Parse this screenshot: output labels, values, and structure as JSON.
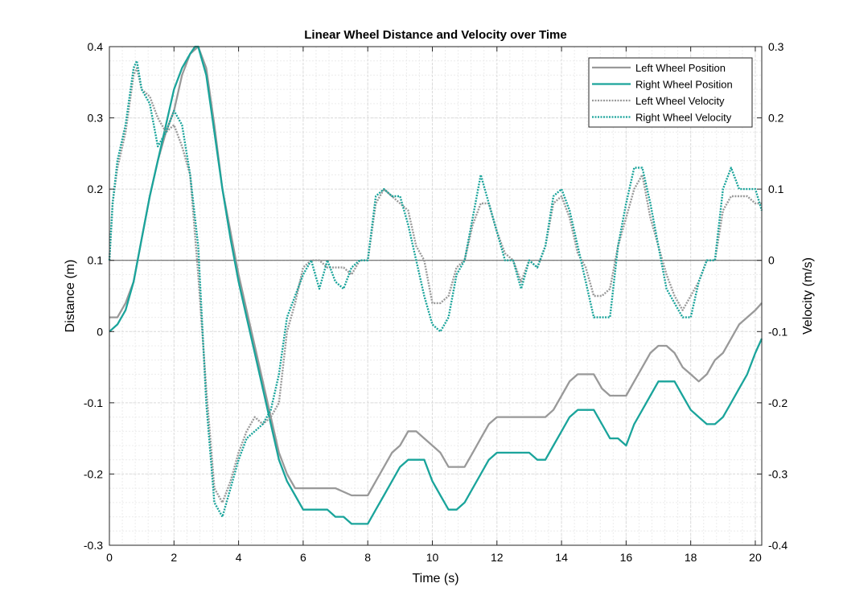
{
  "chart_data": {
    "type": "line",
    "title": "Linear Wheel Distance and Velocity over Time",
    "xlabel": "Time (s)",
    "ylabel_left": "Distance (m)",
    "ylabel_right": "Velocity (m/s)",
    "xlim": [
      0,
      20.2
    ],
    "ylim_left": [
      -0.3,
      0.4
    ],
    "ylim_right": [
      -0.4,
      0.3
    ],
    "x_ticks": [
      0,
      2,
      4,
      6,
      8,
      10,
      12,
      14,
      16,
      18,
      20
    ],
    "y_left_ticks": [
      -0.3,
      -0.2,
      -0.1,
      0,
      0.1,
      0.2,
      0.3,
      0.4
    ],
    "y_right_ticks": [
      -0.4,
      -0.3,
      -0.2,
      -0.1,
      0,
      0.1,
      0.2,
      0.3
    ],
    "x_tick_labels": [
      "0",
      "2",
      "4",
      "6",
      "8",
      "10",
      "12",
      "14",
      "16",
      "18",
      "20"
    ],
    "y_left_tick_labels": [
      "-0.3",
      "-0.2",
      "-0.1",
      "0",
      "0.1",
      "0.2",
      "0.3",
      "0.4"
    ],
    "y_right_tick_labels": [
      "-0.4",
      "-0.3",
      "-0.2",
      "-0.1",
      "0",
      "0.1",
      "0.2",
      "0.3"
    ],
    "grid": true,
    "minor_grid": true,
    "zero_line_right_axis": 0,
    "legend_position": "top-right",
    "series": [
      {
        "name": "Left Wheel Position",
        "axis": "left",
        "style": "solid",
        "color": "#999999",
        "x": [
          0,
          0.25,
          0.5,
          0.75,
          1.0,
          1.25,
          1.5,
          1.75,
          2.0,
          2.25,
          2.5,
          2.75,
          3.0,
          3.25,
          3.5,
          3.75,
          4.0,
          4.25,
          4.5,
          4.75,
          5.0,
          5.25,
          5.5,
          5.75,
          6.0,
          6.5,
          7.0,
          7.5,
          8.0,
          8.25,
          8.5,
          8.75,
          9.0,
          9.25,
          9.5,
          9.75,
          10.0,
          10.25,
          10.5,
          10.75,
          11.0,
          11.25,
          11.5,
          11.75,
          12.0,
          12.5,
          13.0,
          13.5,
          13.75,
          14.0,
          14.25,
          14.5,
          14.75,
          15.0,
          15.25,
          15.5,
          15.75,
          16.0,
          16.25,
          16.5,
          16.75,
          17.0,
          17.25,
          17.5,
          17.75,
          18.0,
          18.25,
          18.5,
          18.75,
          19.0,
          19.25,
          19.5,
          19.75,
          20.0,
          20.2
        ],
        "values": [
          0.02,
          0.02,
          0.04,
          0.07,
          0.13,
          0.19,
          0.24,
          0.28,
          0.31,
          0.36,
          0.39,
          0.4,
          0.37,
          0.29,
          0.2,
          0.14,
          0.08,
          0.03,
          -0.02,
          -0.07,
          -0.12,
          -0.17,
          -0.2,
          -0.22,
          -0.22,
          -0.22,
          -0.22,
          -0.23,
          -0.23,
          -0.21,
          -0.19,
          -0.17,
          -0.16,
          -0.14,
          -0.14,
          -0.15,
          -0.16,
          -0.17,
          -0.19,
          -0.19,
          -0.19,
          -0.17,
          -0.15,
          -0.13,
          -0.12,
          -0.12,
          -0.12,
          -0.12,
          -0.11,
          -0.09,
          -0.07,
          -0.06,
          -0.06,
          -0.06,
          -0.08,
          -0.09,
          -0.09,
          -0.09,
          -0.07,
          -0.05,
          -0.03,
          -0.02,
          -0.02,
          -0.03,
          -0.05,
          -0.06,
          -0.07,
          -0.06,
          -0.04,
          -0.03,
          -0.01,
          0.01,
          0.02,
          0.03,
          0.04
        ]
      },
      {
        "name": "Right Wheel Position",
        "axis": "left",
        "style": "solid",
        "color": "#1aa49b",
        "x": [
          0,
          0.25,
          0.5,
          0.75,
          1.0,
          1.25,
          1.5,
          1.75,
          2.0,
          2.25,
          2.5,
          2.65,
          2.75,
          3.0,
          3.25,
          3.5,
          3.75,
          4.0,
          4.25,
          4.5,
          4.75,
          5.0,
          5.25,
          5.5,
          5.75,
          6.0,
          6.5,
          6.75,
          7.0,
          7.25,
          7.5,
          8.0,
          8.25,
          8.5,
          8.75,
          9.0,
          9.25,
          9.5,
          9.75,
          10.0,
          10.25,
          10.5,
          10.75,
          11.0,
          11.25,
          11.5,
          11.75,
          12.0,
          12.5,
          13.0,
          13.25,
          13.5,
          13.75,
          14.0,
          14.25,
          14.5,
          14.75,
          15.0,
          15.25,
          15.5,
          15.75,
          16.0,
          16.25,
          16.5,
          16.75,
          17.0,
          17.25,
          17.5,
          17.75,
          18.0,
          18.25,
          18.5,
          18.75,
          19.0,
          19.25,
          19.5,
          19.75,
          20.0,
          20.2
        ],
        "values": [
          0.0,
          0.01,
          0.03,
          0.07,
          0.13,
          0.19,
          0.24,
          0.29,
          0.34,
          0.37,
          0.39,
          0.4,
          0.4,
          0.36,
          0.28,
          0.2,
          0.13,
          0.07,
          0.02,
          -0.03,
          -0.08,
          -0.13,
          -0.18,
          -0.21,
          -0.23,
          -0.25,
          -0.25,
          -0.25,
          -0.26,
          -0.26,
          -0.27,
          -0.27,
          -0.25,
          -0.23,
          -0.21,
          -0.19,
          -0.18,
          -0.18,
          -0.18,
          -0.21,
          -0.23,
          -0.25,
          -0.25,
          -0.24,
          -0.22,
          -0.2,
          -0.18,
          -0.17,
          -0.17,
          -0.17,
          -0.18,
          -0.18,
          -0.16,
          -0.14,
          -0.12,
          -0.11,
          -0.11,
          -0.11,
          -0.13,
          -0.15,
          -0.15,
          -0.16,
          -0.13,
          -0.11,
          -0.09,
          -0.07,
          -0.07,
          -0.07,
          -0.09,
          -0.11,
          -0.12,
          -0.13,
          -0.13,
          -0.12,
          -0.1,
          -0.08,
          -0.06,
          -0.03,
          -0.01
        ]
      },
      {
        "name": "Left Wheel Velocity",
        "axis": "right",
        "style": "dotted",
        "color": "#999999",
        "x": [
          0,
          0.1,
          0.25,
          0.5,
          0.75,
          0.85,
          1.0,
          1.25,
          1.5,
          1.75,
          2.0,
          2.25,
          2.5,
          2.75,
          3.0,
          3.25,
          3.5,
          3.75,
          4.0,
          4.25,
          4.5,
          4.75,
          5.0,
          5.25,
          5.5,
          5.75,
          6.0,
          6.25,
          6.5,
          6.75,
          7.0,
          7.25,
          7.5,
          7.75,
          8.0,
          8.25,
          8.5,
          8.75,
          9.0,
          9.25,
          9.5,
          9.75,
          10.0,
          10.25,
          10.5,
          10.75,
          11.0,
          11.25,
          11.5,
          11.75,
          12.0,
          12.25,
          12.5,
          12.75,
          13.0,
          13.25,
          13.5,
          13.75,
          14.0,
          14.25,
          14.5,
          14.75,
          15.0,
          15.25,
          15.5,
          15.75,
          16.0,
          16.25,
          16.5,
          16.75,
          17.0,
          17.25,
          17.5,
          17.75,
          18.0,
          18.25,
          18.5,
          18.75,
          19.0,
          19.25,
          19.5,
          19.75,
          20.0,
          20.2
        ],
        "values": [
          0.0,
          0.08,
          0.13,
          0.18,
          0.26,
          0.27,
          0.24,
          0.23,
          0.2,
          0.18,
          0.19,
          0.16,
          0.12,
          -0.02,
          -0.18,
          -0.32,
          -0.34,
          -0.31,
          -0.27,
          -0.24,
          -0.22,
          -0.23,
          -0.22,
          -0.2,
          -0.1,
          -0.06,
          -0.01,
          0.0,
          0.0,
          -0.01,
          -0.01,
          -0.01,
          -0.02,
          0.0,
          0.0,
          0.08,
          0.1,
          0.09,
          0.08,
          0.07,
          0.02,
          0.0,
          -0.06,
          -0.06,
          -0.05,
          -0.01,
          0.0,
          0.05,
          0.08,
          0.08,
          0.04,
          0.01,
          0.0,
          -0.03,
          0.0,
          -0.01,
          0.02,
          0.08,
          0.09,
          0.06,
          0.01,
          -0.01,
          -0.05,
          -0.05,
          -0.04,
          0.02,
          0.06,
          0.1,
          0.12,
          0.06,
          0.02,
          -0.02,
          -0.05,
          -0.07,
          -0.05,
          -0.03,
          0.0,
          0.0,
          0.07,
          0.09,
          0.09,
          0.09,
          0.08,
          0.08
        ]
      },
      {
        "name": "Right Wheel Velocity",
        "axis": "right",
        "style": "dotted",
        "color": "#1aa49b",
        "x": [
          0,
          0.1,
          0.25,
          0.5,
          0.75,
          0.85,
          1.0,
          1.25,
          1.5,
          1.75,
          2.0,
          2.25,
          2.5,
          2.75,
          3.0,
          3.25,
          3.5,
          3.75,
          4.0,
          4.25,
          4.5,
          4.75,
          5.0,
          5.25,
          5.5,
          5.75,
          6.0,
          6.25,
          6.5,
          6.75,
          7.0,
          7.25,
          7.5,
          7.75,
          8.0,
          8.25,
          8.5,
          8.75,
          9.0,
          9.25,
          9.5,
          9.75,
          10.0,
          10.25,
          10.5,
          10.75,
          11.0,
          11.25,
          11.5,
          11.75,
          12.0,
          12.25,
          12.5,
          12.75,
          13.0,
          13.25,
          13.5,
          13.75,
          14.0,
          14.25,
          14.5,
          14.75,
          15.0,
          15.25,
          15.5,
          15.75,
          16.0,
          16.25,
          16.5,
          16.75,
          17.0,
          17.25,
          17.5,
          17.75,
          18.0,
          18.25,
          18.5,
          18.75,
          19.0,
          19.25,
          19.5,
          19.75,
          20.0,
          20.2
        ],
        "values": [
          0.0,
          0.08,
          0.14,
          0.19,
          0.27,
          0.28,
          0.24,
          0.22,
          0.16,
          0.18,
          0.21,
          0.19,
          0.12,
          0.02,
          -0.2,
          -0.34,
          -0.36,
          -0.32,
          -0.28,
          -0.25,
          -0.24,
          -0.23,
          -0.21,
          -0.16,
          -0.08,
          -0.05,
          -0.02,
          0.0,
          -0.04,
          0.0,
          -0.03,
          -0.04,
          -0.01,
          0.0,
          0.0,
          0.09,
          0.1,
          0.09,
          0.09,
          0.05,
          0.0,
          -0.05,
          -0.09,
          -0.1,
          -0.08,
          -0.02,
          0.0,
          0.06,
          0.12,
          0.08,
          0.04,
          0.0,
          0.0,
          -0.04,
          0.0,
          -0.01,
          0.02,
          0.09,
          0.1,
          0.07,
          0.02,
          -0.03,
          -0.08,
          -0.08,
          -0.08,
          0.02,
          0.08,
          0.13,
          0.13,
          0.08,
          0.02,
          -0.04,
          -0.06,
          -0.08,
          -0.08,
          -0.03,
          0.0,
          0.0,
          0.1,
          0.13,
          0.1,
          0.1,
          0.1,
          0.07
        ]
      }
    ]
  },
  "colors": {
    "background": "#ffffff",
    "axes": "#262626",
    "grid_major": "#dcdcdc",
    "grid_minor": "#ececec"
  }
}
